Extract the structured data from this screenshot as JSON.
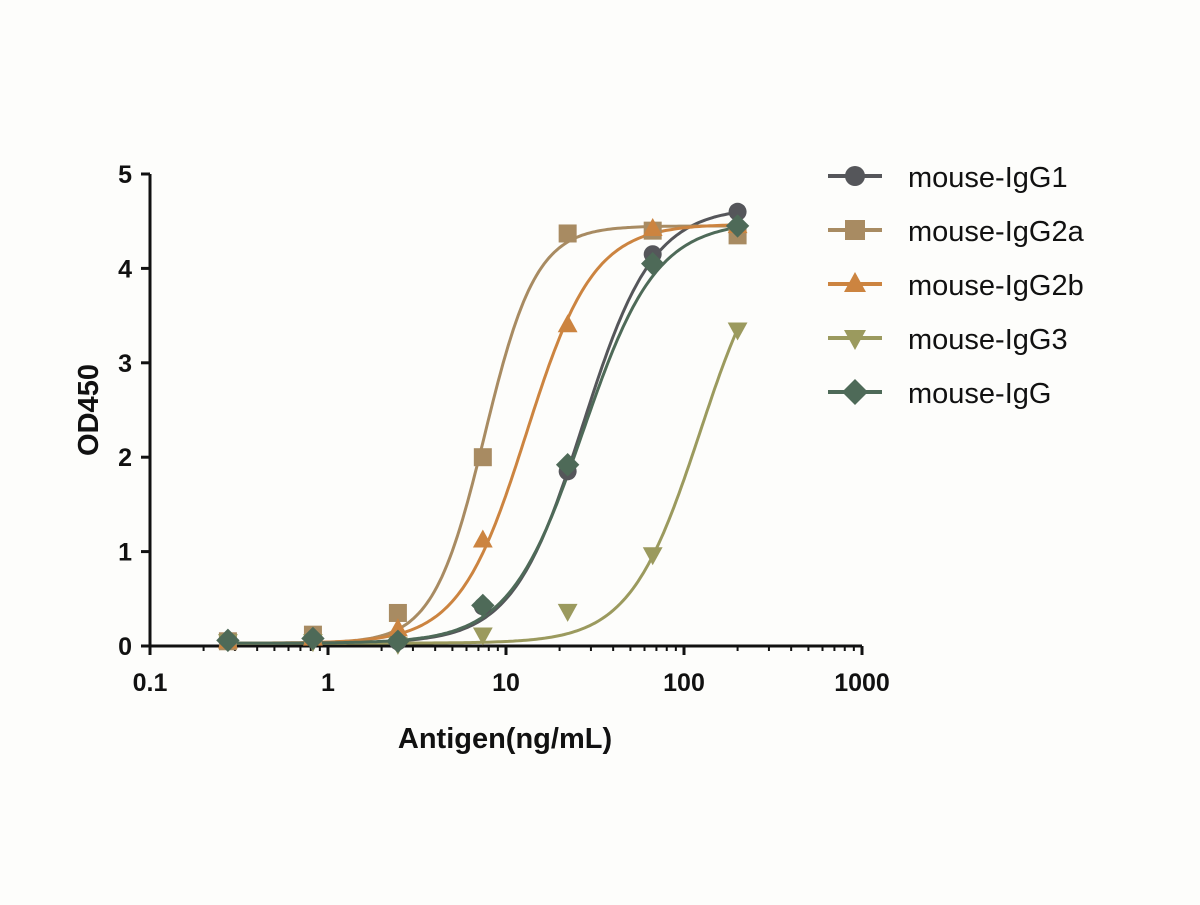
{
  "chart_data": {
    "type": "line",
    "title": "",
    "xlabel": "Antigen(ng/mL)",
    "ylabel": "OD450",
    "xscale": "log",
    "xlim": [
      0.1,
      1000
    ],
    "ylim": [
      0,
      5
    ],
    "x_ticks": [
      "0.1",
      "1",
      "10",
      "100",
      "1000"
    ],
    "x_tick_values": [
      0.1,
      1,
      10,
      100,
      1000
    ],
    "y_ticks": [
      "0",
      "1",
      "2",
      "3",
      "4",
      "5"
    ],
    "y_tick_values": [
      0,
      1,
      2,
      3,
      4,
      5
    ],
    "grid": false,
    "legend_position": "top-right",
    "x": [
      0.274,
      0.823,
      2.47,
      7.41,
      22.2,
      66.7,
      200
    ],
    "series": [
      {
        "name": "mouse-IgG1",
        "color": "#55565a",
        "marker": "circle",
        "values": [
          0.05,
          0.1,
          0.05,
          0.42,
          1.85,
          4.15,
          4.6
        ],
        "fit": {
          "bottom": 0.03,
          "top": 4.65,
          "ec50": 27,
          "hill": 2.2
        }
      },
      {
        "name": "mouse-IgG2a",
        "color": "#a88b62",
        "marker": "square",
        "values": [
          0.05,
          0.12,
          0.35,
          2.0,
          4.37,
          4.4,
          4.35
        ],
        "fit": {
          "bottom": 0.03,
          "top": 4.45,
          "ec50": 7.6,
          "hill": 3.0
        }
      },
      {
        "name": "mouse-IgG2b",
        "color": "#cc8440",
        "marker": "triangle-up",
        "values": [
          0.05,
          0.08,
          0.18,
          1.12,
          3.4,
          4.42,
          4.45
        ],
        "fit": {
          "bottom": 0.03,
          "top": 4.47,
          "ec50": 13,
          "hill": 2.3
        }
      },
      {
        "name": "mouse-IgG3",
        "color": "#9b9a5e",
        "marker": "triangle-down",
        "values": [
          0.05,
          0.05,
          0.02,
          0.12,
          0.37,
          0.97,
          3.35
        ],
        "fit": {
          "bottom": 0.03,
          "top": 4.5,
          "ec50": 123,
          "hill": 2.2
        }
      },
      {
        "name": "mouse-IgG",
        "color": "#4e6a58",
        "marker": "diamond",
        "values": [
          0.06,
          0.08,
          0.05,
          0.43,
          1.92,
          4.05,
          4.45
        ],
        "fit": {
          "bottom": 0.03,
          "top": 4.5,
          "ec50": 27,
          "hill": 2.1
        }
      }
    ]
  }
}
